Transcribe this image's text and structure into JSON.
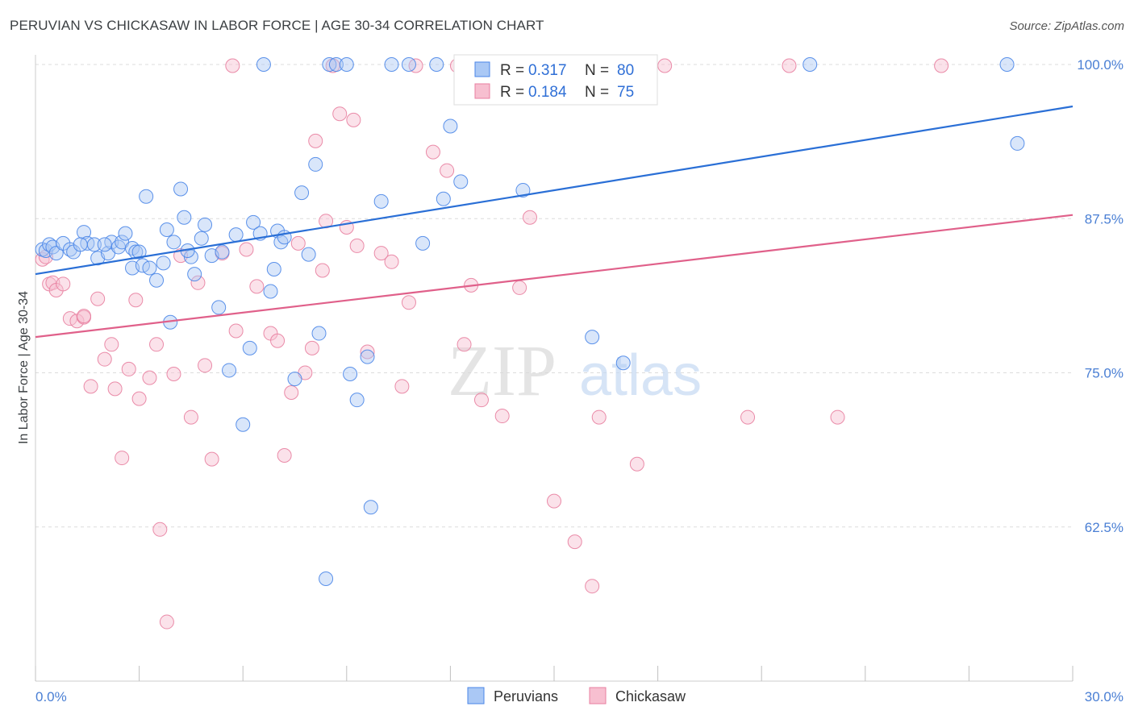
{
  "title": "PERUVIAN VS CHICKASAW IN LABOR FORCE | AGE 30-34 CORRELATION CHART",
  "source": "Source: ZipAtlas.com",
  "watermark": {
    "zip": "ZIP",
    "atlas": "atlas"
  },
  "colors": {
    "blue": "#4a86e8",
    "blue_fill": "#aac8f5",
    "blue_line": "#2a6fd6",
    "pink": "#e87fa0",
    "pink_fill": "#f7bfd0",
    "pink_line": "#e0608a",
    "grid": "#dcdcdc",
    "axis_text": "#4a7fd4"
  },
  "legend": {
    "r_label": "R =",
    "n_label": "N =",
    "series": [
      {
        "r": "0.317",
        "n": "80"
      },
      {
        "r": "0.184",
        "n": "75"
      }
    ]
  },
  "chart_data": {
    "type": "scatter",
    "title": "PERUVIAN VS CHICKASAW IN LABOR FORCE | AGE 30-34 CORRELATION CHART",
    "xlabel": "",
    "ylabel": "In Labor Force | Age 30-34",
    "xlim": [
      0,
      30
    ],
    "ylim": [
      50,
      100
    ],
    "x_tick_labels": [
      "0.0%",
      "30.0%"
    ],
    "y_ticks": [
      62.5,
      75.0,
      87.5,
      100.0
    ],
    "y_tick_labels": [
      "62.5%",
      "75.0%",
      "87.5%",
      "100.0%"
    ],
    "legend_position": "top-center",
    "series": [
      {
        "name": "Peruvians",
        "trend": {
          "x": [
            0,
            30
          ],
          "y": [
            83.0,
            96.6
          ]
        },
        "points": [
          [
            0.2,
            85
          ],
          [
            0.3,
            84.9
          ],
          [
            0.4,
            85.4
          ],
          [
            0.5,
            85.2
          ],
          [
            0.6,
            84.7
          ],
          [
            0.8,
            85.5
          ],
          [
            1.0,
            85
          ],
          [
            1.1,
            84.8
          ],
          [
            1.4,
            86.4
          ],
          [
            1.5,
            85.5
          ],
          [
            1.7,
            85.4
          ],
          [
            1.8,
            84.3
          ],
          [
            2.1,
            84.7
          ],
          [
            2.2,
            85.6
          ],
          [
            2.4,
            85.2
          ],
          [
            2.5,
            85.6
          ],
          [
            2.6,
            86.3
          ],
          [
            2.8,
            85.1
          ],
          [
            2.8,
            83.5
          ],
          [
            2.9,
            84.8
          ],
          [
            3.1,
            83.7
          ],
          [
            3.2,
            89.3
          ],
          [
            3.3,
            83.5
          ],
          [
            3.5,
            82.5
          ],
          [
            3.7,
            83.9
          ],
          [
            3.8,
            86.6
          ],
          [
            3.9,
            79.1
          ],
          [
            4.0,
            85.6
          ],
          [
            4.2,
            89.9
          ],
          [
            4.3,
            87.6
          ],
          [
            4.5,
            84.4
          ],
          [
            4.6,
            83.0
          ],
          [
            4.8,
            85.9
          ],
          [
            4.9,
            87.0
          ],
          [
            5.1,
            84.5
          ],
          [
            5.3,
            80.3
          ],
          [
            5.4,
            84.8
          ],
          [
            5.6,
            75.2
          ],
          [
            5.8,
            86.2
          ],
          [
            6.0,
            70.8
          ],
          [
            6.2,
            77.0
          ],
          [
            6.3,
            87.2
          ],
          [
            6.5,
            86.3
          ],
          [
            6.6,
            100
          ],
          [
            6.8,
            81.6
          ],
          [
            6.9,
            83.4
          ],
          [
            7.0,
            86.5
          ],
          [
            7.1,
            85.6
          ],
          [
            7.2,
            86.0
          ],
          [
            7.5,
            74.5
          ],
          [
            7.7,
            89.6
          ],
          [
            7.9,
            84.6
          ],
          [
            8.1,
            91.9
          ],
          [
            8.2,
            78.2
          ],
          [
            8.4,
            58.3
          ],
          [
            8.5,
            100
          ],
          [
            8.7,
            100
          ],
          [
            9.0,
            100
          ],
          [
            9.1,
            74.9
          ],
          [
            9.3,
            72.8
          ],
          [
            9.6,
            76.3
          ],
          [
            9.7,
            64.1
          ],
          [
            10.0,
            88.9
          ],
          [
            10.3,
            100
          ],
          [
            10.8,
            100
          ],
          [
            11.2,
            85.5
          ],
          [
            11.6,
            100
          ],
          [
            11.8,
            89.1
          ],
          [
            12.0,
            95.0
          ],
          [
            12.3,
            90.5
          ],
          [
            14.1,
            89.8
          ],
          [
            16.1,
            77.9
          ],
          [
            17.0,
            75.8
          ],
          [
            22.4,
            100
          ],
          [
            28.1,
            100
          ],
          [
            28.4,
            93.6
          ],
          [
            2.0,
            85.4
          ],
          [
            1.3,
            85.4
          ],
          [
            4.4,
            84.9
          ],
          [
            3.0,
            84.8
          ]
        ]
      },
      {
        "name": "Chickasaw",
        "trend": {
          "x": [
            0,
            30
          ],
          "y": [
            77.9,
            87.8
          ]
        },
        "points": [
          [
            0.2,
            84.2
          ],
          [
            0.4,
            82.2
          ],
          [
            0.5,
            82.3
          ],
          [
            0.6,
            81.7
          ],
          [
            0.8,
            82.2
          ],
          [
            1.0,
            79.4
          ],
          [
            1.2,
            79.2
          ],
          [
            1.4,
            79.5
          ],
          [
            1.6,
            73.9
          ],
          [
            1.8,
            81.0
          ],
          [
            2.0,
            76.1
          ],
          [
            2.2,
            77.3
          ],
          [
            2.3,
            73.7
          ],
          [
            2.5,
            68.1
          ],
          [
            2.7,
            75.3
          ],
          [
            2.9,
            80.9
          ],
          [
            3.0,
            72.9
          ],
          [
            3.3,
            74.6
          ],
          [
            3.5,
            77.3
          ],
          [
            3.6,
            62.3
          ],
          [
            3.8,
            54.8
          ],
          [
            4.0,
            74.9
          ],
          [
            4.2,
            84.5
          ],
          [
            4.5,
            71.4
          ],
          [
            4.7,
            82.3
          ],
          [
            4.9,
            75.6
          ],
          [
            5.1,
            68.0
          ],
          [
            5.4,
            84.7
          ],
          [
            5.7,
            99.9
          ],
          [
            5.8,
            78.4
          ],
          [
            6.1,
            85.0
          ],
          [
            6.4,
            82.0
          ],
          [
            6.8,
            78.2
          ],
          [
            7.0,
            77.6
          ],
          [
            7.2,
            68.3
          ],
          [
            7.4,
            73.4
          ],
          [
            7.6,
            85.5
          ],
          [
            7.8,
            75.0
          ],
          [
            8.0,
            77.0
          ],
          [
            8.1,
            93.8
          ],
          [
            8.3,
            83.3
          ],
          [
            8.4,
            87.3
          ],
          [
            8.6,
            99.9
          ],
          [
            8.8,
            96.0
          ],
          [
            9.0,
            86.8
          ],
          [
            9.2,
            95.5
          ],
          [
            9.3,
            85.3
          ],
          [
            9.6,
            76.7
          ],
          [
            10.0,
            84.7
          ],
          [
            10.3,
            84.0
          ],
          [
            10.6,
            73.9
          ],
          [
            10.8,
            80.7
          ],
          [
            11.0,
            99.9
          ],
          [
            11.5,
            92.9
          ],
          [
            11.9,
            91.4
          ],
          [
            12.2,
            99.9
          ],
          [
            12.4,
            77.3
          ],
          [
            12.6,
            82.1
          ],
          [
            12.9,
            72.8
          ],
          [
            13.5,
            71.5
          ],
          [
            14.0,
            81.9
          ],
          [
            14.3,
            87.6
          ],
          [
            15.0,
            64.6
          ],
          [
            15.6,
            61.3
          ],
          [
            16.1,
            57.7
          ],
          [
            16.3,
            71.4
          ],
          [
            16.9,
            99.9
          ],
          [
            17.4,
            67.6
          ],
          [
            18.2,
            99.9
          ],
          [
            20.6,
            71.4
          ],
          [
            21.8,
            99.9
          ],
          [
            23.2,
            71.4
          ],
          [
            26.2,
            99.9
          ],
          [
            0.3,
            84.4
          ],
          [
            1.4,
            79.6
          ]
        ]
      }
    ]
  }
}
